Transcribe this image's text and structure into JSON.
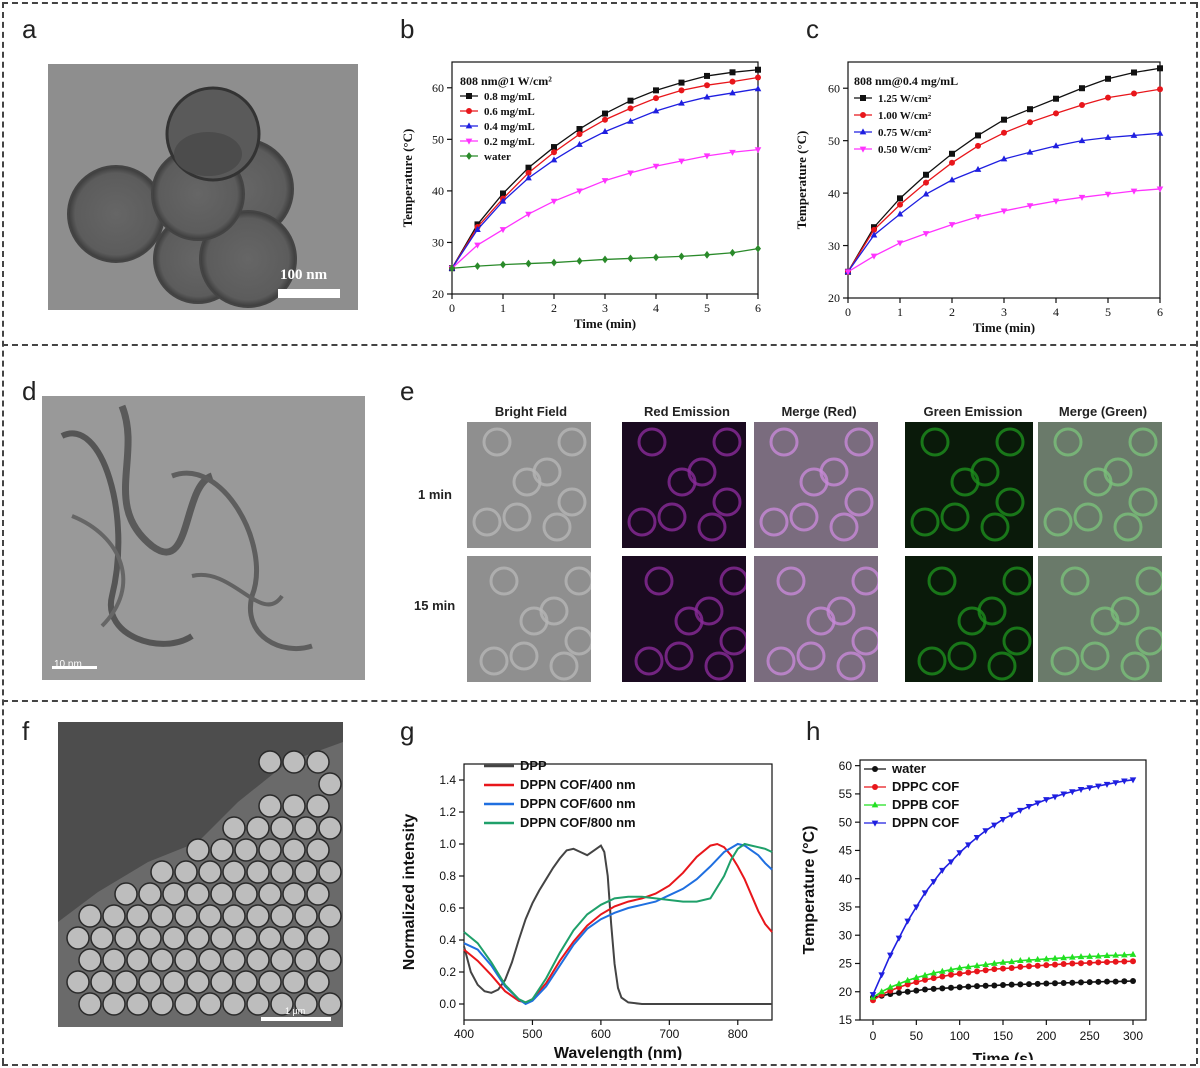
{
  "panels": {
    "a": {
      "letter": "a",
      "scale_label": "100 nm"
    },
    "b": {
      "letter": "b"
    },
    "c": {
      "letter": "c"
    },
    "d": {
      "letter": "d",
      "scale_label": "10 nm"
    },
    "e": {
      "letter": "e",
      "columns": [
        "Bright Field",
        "Red Emission",
        "Merge (Red)",
        "Green Emission",
        "Merge (Green)"
      ],
      "rows": [
        "1 min",
        "15 min"
      ]
    },
    "f": {
      "letter": "f",
      "scale_label": "1 μm"
    },
    "g": {
      "letter": "g"
    },
    "h": {
      "letter": "h"
    }
  },
  "colors": {
    "red_emission": "#7a1f7a",
    "green_emission": "#1f8a1f",
    "black": "#111111",
    "red": "#e8161b",
    "blue": "#1f1fe0",
    "magenta": "#ff33ff",
    "green": "#2a8a2a"
  },
  "chart_data": [
    {
      "id": "b",
      "type": "line",
      "title": "808 nm@1 W/cm²",
      "xlabel": "Time (min)",
      "ylabel": "Temperature (°C)",
      "xlim": [
        0,
        6
      ],
      "ylim": [
        20,
        65
      ],
      "xticks": [
        0,
        1,
        2,
        3,
        4,
        5,
        6
      ],
      "yticks": [
        20,
        30,
        40,
        50,
        60
      ],
      "x": [
        0,
        0.5,
        1,
        1.5,
        2,
        2.5,
        3,
        3.5,
        4,
        4.5,
        5,
        5.5,
        6
      ],
      "series": [
        {
          "name": "0.8 mg/mL",
          "color": "#111111",
          "marker": "square",
          "values": [
            25,
            33.5,
            39.5,
            44.5,
            48.5,
            52,
            55,
            57.5,
            59.5,
            61,
            62.3,
            63,
            63.5
          ]
        },
        {
          "name": "0.6 mg/mL",
          "color": "#e8161b",
          "marker": "circle",
          "values": [
            25,
            33,
            38.5,
            43.5,
            47.5,
            51,
            53.8,
            56,
            58,
            59.5,
            60.5,
            61.2,
            62
          ]
        },
        {
          "name": "0.4 mg/mL",
          "color": "#1f1fe0",
          "marker": "triangle-up",
          "values": [
            25,
            32.5,
            38,
            42.5,
            46,
            49,
            51.5,
            53.5,
            55.5,
            57,
            58.2,
            59,
            59.8
          ]
        },
        {
          "name": "0.2 mg/mL",
          "color": "#ff33ff",
          "marker": "triangle-down",
          "values": [
            25,
            29.5,
            32.5,
            35.5,
            38,
            40,
            42,
            43.5,
            44.8,
            45.8,
            46.8,
            47.5,
            48
          ]
        },
        {
          "name": "water",
          "color": "#2a8a2a",
          "marker": "diamond",
          "values": [
            25,
            25.4,
            25.7,
            25.9,
            26.1,
            26.4,
            26.7,
            26.9,
            27.1,
            27.3,
            27.6,
            28,
            28.8
          ]
        }
      ]
    },
    {
      "id": "c",
      "type": "line",
      "title": "808 nm@0.4 mg/mL",
      "xlabel": "Time (min)",
      "ylabel": "Temperature (°C)",
      "xlim": [
        0,
        6
      ],
      "ylim": [
        20,
        65
      ],
      "xticks": [
        0,
        1,
        2,
        3,
        4,
        5,
        6
      ],
      "yticks": [
        20,
        30,
        40,
        50,
        60
      ],
      "x": [
        0,
        0.5,
        1,
        1.5,
        2,
        2.5,
        3,
        3.5,
        4,
        4.5,
        5,
        5.5,
        6
      ],
      "series": [
        {
          "name": "1.25 W/cm²",
          "color": "#111111",
          "marker": "square",
          "values": [
            25,
            33.5,
            39,
            43.5,
            47.5,
            51,
            54,
            56,
            58,
            60,
            61.8,
            63,
            63.8
          ]
        },
        {
          "name": "1.00 W/cm²",
          "color": "#e8161b",
          "marker": "circle",
          "values": [
            25,
            33,
            37.8,
            42,
            45.8,
            49,
            51.5,
            53.5,
            55.2,
            56.8,
            58.2,
            59,
            59.8
          ]
        },
        {
          "name": "0.75 W/cm²",
          "color": "#1f1fe0",
          "marker": "triangle-up",
          "values": [
            25,
            32,
            36,
            39.8,
            42.5,
            44.5,
            46.5,
            47.8,
            49,
            50,
            50.6,
            51,
            51.4
          ]
        },
        {
          "name": "0.50 W/cm²",
          "color": "#ff33ff",
          "marker": "triangle-down",
          "values": [
            25,
            28,
            30.5,
            32.3,
            34,
            35.5,
            36.6,
            37.6,
            38.5,
            39.2,
            39.8,
            40.4,
            40.8
          ]
        }
      ]
    },
    {
      "id": "g",
      "type": "line",
      "title": "",
      "xlabel": "Wavelength (nm)",
      "ylabel": "Normalized intensity",
      "xlim": [
        400,
        850
      ],
      "ylim": [
        -0.1,
        1.5
      ],
      "xticks": [
        400,
        500,
        600,
        700,
        800
      ],
      "yticks": [
        0.0,
        0.2,
        0.4,
        0.6,
        0.8,
        1.0,
        1.2,
        1.4
      ],
      "series": [
        {
          "name": "DPP",
          "color": "#444444",
          "x": [
            400,
            410,
            420,
            430,
            440,
            450,
            460,
            470,
            480,
            490,
            500,
            510,
            520,
            530,
            540,
            550,
            560,
            570,
            580,
            590,
            600,
            605,
            610,
            615,
            620,
            625,
            630,
            640,
            660,
            700,
            750,
            800,
            850
          ],
          "values": [
            0.36,
            0.2,
            0.12,
            0.08,
            0.07,
            0.09,
            0.15,
            0.26,
            0.4,
            0.53,
            0.63,
            0.71,
            0.78,
            0.85,
            0.91,
            0.96,
            0.97,
            0.95,
            0.93,
            0.96,
            0.99,
            0.95,
            0.8,
            0.5,
            0.25,
            0.1,
            0.04,
            0.01,
            0.0,
            0.0,
            0.0,
            0.0,
            0.0
          ]
        },
        {
          "name": "DPPN COF/400 nm",
          "color": "#e8161b",
          "x": [
            400,
            420,
            440,
            460,
            480,
            490,
            500,
            520,
            540,
            560,
            580,
            600,
            620,
            640,
            660,
            680,
            700,
            720,
            740,
            760,
            770,
            780,
            790,
            800,
            810,
            820,
            830,
            840,
            850
          ],
          "values": [
            0.34,
            0.27,
            0.18,
            0.08,
            0.02,
            0.01,
            0.03,
            0.13,
            0.27,
            0.39,
            0.49,
            0.56,
            0.61,
            0.64,
            0.66,
            0.69,
            0.74,
            0.82,
            0.92,
            0.99,
            1.0,
            0.98,
            0.93,
            0.86,
            0.78,
            0.68,
            0.58,
            0.5,
            0.45
          ]
        },
        {
          "name": "DPPN COF/600 nm",
          "color": "#1f6fe0",
          "x": [
            400,
            420,
            440,
            460,
            480,
            490,
            500,
            520,
            540,
            560,
            580,
            600,
            620,
            640,
            660,
            680,
            700,
            720,
            740,
            760,
            780,
            800,
            810,
            820,
            830,
            840,
            850
          ],
          "values": [
            0.38,
            0.34,
            0.24,
            0.11,
            0.03,
            0.0,
            0.02,
            0.11,
            0.24,
            0.37,
            0.47,
            0.53,
            0.57,
            0.6,
            0.62,
            0.64,
            0.68,
            0.72,
            0.78,
            0.86,
            0.95,
            1.0,
            0.99,
            0.96,
            0.93,
            0.88,
            0.84
          ]
        },
        {
          "name": "DPPN COF/800 nm",
          "color": "#1fa06a",
          "x": [
            400,
            420,
            440,
            460,
            480,
            490,
            500,
            520,
            540,
            560,
            580,
            600,
            620,
            640,
            660,
            680,
            700,
            720,
            740,
            760,
            780,
            790,
            800,
            810,
            820,
            830,
            840,
            850
          ],
          "values": [
            0.45,
            0.38,
            0.26,
            0.12,
            0.03,
            0.01,
            0.03,
            0.16,
            0.32,
            0.46,
            0.56,
            0.62,
            0.66,
            0.67,
            0.67,
            0.66,
            0.65,
            0.64,
            0.64,
            0.66,
            0.8,
            0.9,
            0.97,
            1.0,
            0.99,
            0.98,
            0.97,
            0.95
          ]
        }
      ]
    },
    {
      "id": "h",
      "type": "line",
      "title": "",
      "xlabel": "Time (s)",
      "ylabel": "Temperature (°C)",
      "xlim": [
        -15,
        315
      ],
      "ylim": [
        15,
        61
      ],
      "xticks": [
        0,
        50,
        100,
        150,
        200,
        250,
        300
      ],
      "yticks": [
        15,
        20,
        25,
        30,
        35,
        40,
        45,
        50,
        55,
        60
      ],
      "x": [
        0,
        10,
        20,
        30,
        40,
        50,
        60,
        70,
        80,
        90,
        100,
        110,
        120,
        130,
        140,
        150,
        160,
        170,
        180,
        190,
        200,
        210,
        220,
        230,
        240,
        250,
        260,
        270,
        280,
        290,
        300
      ],
      "series": [
        {
          "name": "water",
          "color": "#111111",
          "marker": "circle",
          "values": [
            19.0,
            19.3,
            19.6,
            19.8,
            20.0,
            20.2,
            20.4,
            20.5,
            20.6,
            20.7,
            20.8,
            20.9,
            21.0,
            21.05,
            21.1,
            21.2,
            21.25,
            21.3,
            21.35,
            21.4,
            21.45,
            21.5,
            21.55,
            21.6,
            21.65,
            21.7,
            21.75,
            21.8,
            21.8,
            21.85,
            21.9
          ]
        },
        {
          "name": "DPPC COF",
          "color": "#e8161b",
          "marker": "circle",
          "values": [
            18.5,
            19.5,
            20.2,
            20.8,
            21.3,
            21.7,
            22.1,
            22.4,
            22.7,
            23.0,
            23.2,
            23.4,
            23.6,
            23.8,
            24.0,
            24.1,
            24.2,
            24.4,
            24.5,
            24.6,
            24.7,
            24.8,
            24.9,
            25.0,
            25.05,
            25.1,
            25.2,
            25.25,
            25.3,
            25.35,
            25.4
          ]
        },
        {
          "name": "DPPB COF",
          "color": "#22e022",
          "marker": "triangle-up",
          "values": [
            19.0,
            20.0,
            20.8,
            21.4,
            22.0,
            22.5,
            22.9,
            23.3,
            23.6,
            23.9,
            24.2,
            24.4,
            24.6,
            24.8,
            25.0,
            25.2,
            25.3,
            25.5,
            25.6,
            25.7,
            25.8,
            25.9,
            26.0,
            26.1,
            26.2,
            26.25,
            26.3,
            26.4,
            26.45,
            26.5,
            26.6
          ]
        },
        {
          "name": "DPPN COF",
          "color": "#1f1fe0",
          "marker": "triangle-down",
          "values": [
            19.5,
            23.0,
            26.5,
            29.5,
            32.5,
            35.0,
            37.5,
            39.5,
            41.5,
            43.0,
            44.6,
            46.0,
            47.3,
            48.5,
            49.5,
            50.5,
            51.3,
            52.1,
            52.8,
            53.4,
            54.0,
            54.5,
            55.0,
            55.4,
            55.8,
            56.1,
            56.4,
            56.7,
            57.0,
            57.3,
            57.5
          ]
        }
      ]
    }
  ]
}
